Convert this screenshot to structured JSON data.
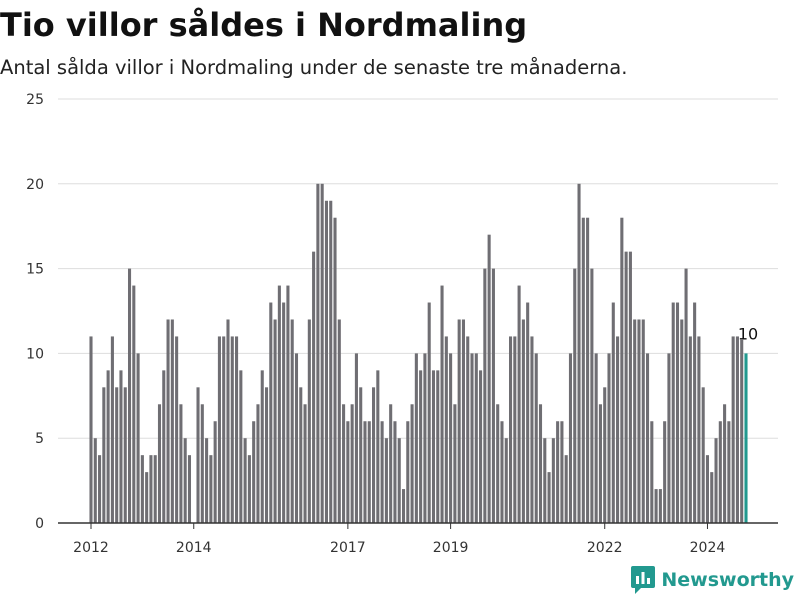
{
  "title": "Tio villor såldes i Nordmaling",
  "subtitle": "Antal sålda villor i Nordmaling under de senaste tre månaderna.",
  "brand": "Newsworthy",
  "colors": {
    "bar": "#6f6e73",
    "highlight": "#22998f",
    "grid": "#dddddd",
    "axis": "#333333",
    "brand": "#22998f"
  },
  "chart_data": {
    "type": "bar",
    "title": "",
    "xlabel": "",
    "ylabel": "",
    "ylim": [
      0,
      25
    ],
    "yticks": [
      0,
      5,
      10,
      15,
      20,
      25
    ],
    "xticks": [
      "2012",
      "2014",
      "2017",
      "2019",
      "2022",
      "2024"
    ],
    "grid": true,
    "series": [
      {
        "values": [
          11,
          5,
          4,
          8,
          9,
          11,
          8,
          9,
          8,
          15,
          14,
          10,
          4,
          3,
          4,
          4,
          7,
          9,
          12,
          12,
          11,
          7,
          5,
          4,
          0,
          8,
          7,
          5,
          4,
          6,
          11,
          11,
          12,
          11,
          11,
          9,
          5,
          4,
          6,
          7,
          9,
          8,
          13,
          12,
          14,
          13,
          14,
          12,
          10,
          8,
          7,
          12,
          16,
          20,
          20,
          19,
          19,
          18,
          12,
          7,
          6,
          7,
          10,
          8,
          6,
          6,
          8,
          9,
          6,
          5,
          7,
          6,
          5,
          2,
          6,
          7,
          10,
          9,
          10,
          13,
          9,
          9,
          14,
          11,
          10,
          7,
          12,
          12,
          11,
          10,
          10,
          9,
          15,
          17,
          15,
          7,
          6,
          5,
          11,
          11,
          14,
          12,
          13,
          11,
          10,
          7,
          5,
          3,
          5,
          6,
          6,
          4,
          10,
          15,
          20,
          18,
          18,
          15,
          10,
          7,
          8,
          10,
          13,
          11,
          18,
          16,
          16,
          12,
          12,
          12,
          10,
          6,
          2,
          2,
          6,
          10,
          13,
          13,
          12,
          15,
          11,
          13,
          11,
          8,
          4,
          3,
          5,
          6,
          7,
          6,
          11,
          11,
          10.8,
          10
        ]
      }
    ],
    "highlight_label": "10"
  }
}
